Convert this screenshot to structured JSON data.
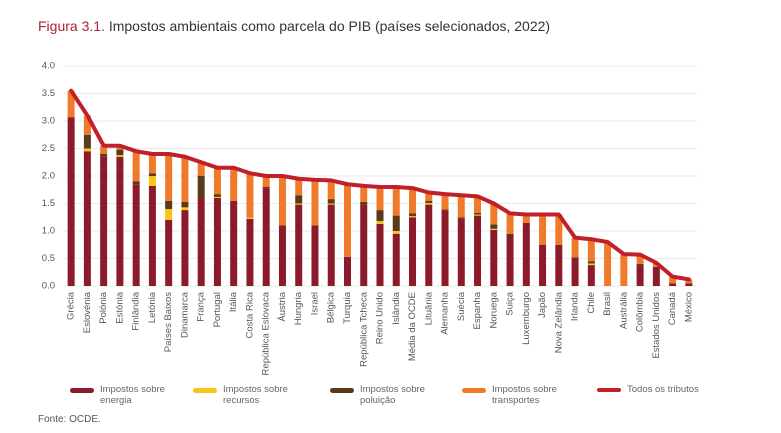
{
  "chart_data": {
    "type": "bar",
    "stacked": true,
    "figure_label": "Figura 3.1.",
    "title": "Impostos ambientais como parcela do PIB (países selecionados, 2022)",
    "source": "Fonte: OCDE.",
    "categories": [
      "Grécia",
      "Eslovénia",
      "Polónia",
      "Estónia",
      "Finlândia",
      "Letónia",
      "Países Baixos",
      "Dinamarca",
      "França",
      "Portugal",
      "Itália",
      "Costa Rica",
      "República Eslovaca",
      "Áustria",
      "Hungria",
      "Israel",
      "Bélgica",
      "Turquia",
      "República Tcheca",
      "Reino Unido",
      "Islândia",
      "Média da OCDE",
      "Lituânia",
      "Alemanha",
      "Suécia",
      "Espanha",
      "Noruega",
      "Suiça",
      "Luxemburgo",
      "Japão",
      "Nova Zelândia",
      "Irlanda",
      "Chile",
      "Brasil",
      "Austrália",
      "Colômbia",
      "Estados Unidos",
      "Canadá",
      "México"
    ],
    "series": [
      {
        "name": "Impostos sobre energia",
        "color": "#8b1a2b",
        "type": "bar",
        "values": [
          3.07,
          2.45,
          2.35,
          2.35,
          1.85,
          1.82,
          1.2,
          1.38,
          1.6,
          1.6,
          1.55,
          1.22,
          1.78,
          1.1,
          1.48,
          1.1,
          1.48,
          0.53,
          1.48,
          1.13,
          0.95,
          1.25,
          1.48,
          1.38,
          1.22,
          1.28,
          1.02,
          0.9,
          1.15,
          0.75,
          0.75,
          0.52,
          0.38,
          0,
          0,
          0.38,
          0.35,
          0.05,
          0.05
        ]
      },
      {
        "name": "Impostos sobre recursos",
        "color": "#f5c518",
        "type": "bar",
        "values": [
          0,
          0.05,
          0,
          0.03,
          0,
          0.18,
          0.2,
          0.05,
          0,
          0.02,
          0,
          0.02,
          0,
          0,
          0.02,
          0,
          0.02,
          0,
          0,
          0.05,
          0.05,
          0.02,
          0.03,
          0,
          0,
          0.02,
          0.02,
          0,
          0,
          0,
          0,
          0,
          0.03,
          0,
          0,
          0,
          0,
          0,
          0
        ]
      },
      {
        "name": "Impostos sobre poluição",
        "color": "#5a3a1a",
        "type": "bar",
        "values": [
          0,
          0.25,
          0.05,
          0.1,
          0.05,
          0.05,
          0.15,
          0.1,
          0.4,
          0.05,
          0,
          0,
          0.02,
          0,
          0.15,
          0,
          0.08,
          0,
          0.05,
          0.2,
          0.28,
          0.05,
          0.04,
          0.01,
          0.03,
          0.03,
          0.08,
          0.05,
          0,
          0,
          0,
          0,
          0.04,
          0,
          0,
          0.02,
          0,
          0,
          0
        ]
      },
      {
        "name": "Impostos sobre transportes",
        "color": "#f07a2a",
        "type": "bar",
        "values": [
          0.48,
          0.35,
          0.15,
          0.07,
          0.55,
          0.35,
          0.85,
          0.82,
          0.25,
          0.48,
          0.6,
          0.8,
          0.2,
          0.9,
          0.3,
          0.83,
          0.34,
          1.32,
          0.29,
          0.42,
          0.52,
          0.46,
          0.15,
          0.28,
          0.4,
          0.3,
          0.38,
          0.37,
          0.15,
          0.55,
          0.55,
          0.36,
          0.4,
          0.8,
          0.58,
          0.17,
          0.07,
          0.12,
          0.07
        ]
      },
      {
        "name": "Todos os tributos",
        "color": "#c0202a",
        "type": "line",
        "values": [
          3.55,
          3.1,
          2.55,
          2.55,
          2.45,
          2.4,
          2.4,
          2.35,
          2.25,
          2.15,
          2.15,
          2.05,
          2.0,
          2.0,
          1.95,
          1.93,
          1.92,
          1.85,
          1.82,
          1.8,
          1.8,
          1.78,
          1.7,
          1.67,
          1.65,
          1.63,
          1.5,
          1.32,
          1.3,
          1.3,
          1.3,
          0.88,
          0.85,
          0.8,
          0.58,
          0.57,
          0.42,
          0.17,
          0.12
        ]
      }
    ],
    "ylim": [
      0,
      4
    ],
    "yticks": [
      {
        "value": 0,
        "label": "0.0"
      },
      {
        "value": 0.5,
        "label": "0.5"
      },
      {
        "value": 1,
        "label": "1.0"
      },
      {
        "value": 1.5,
        "label": "1.5"
      },
      {
        "value": 2,
        "label": "2.0"
      },
      {
        "value": 2.5,
        "label": "2.5"
      },
      {
        "value": 3,
        "label": "3.0"
      },
      {
        "value": 3.5,
        "label": "3.5"
      },
      {
        "value": 4,
        "label": "4.0"
      }
    ],
    "grid": true
  }
}
